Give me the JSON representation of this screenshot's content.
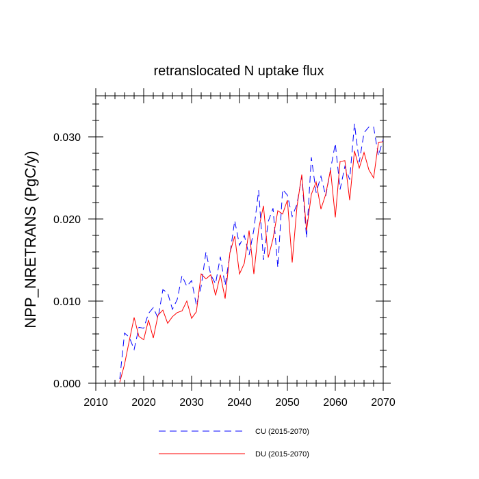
{
  "chart_data": {
    "type": "line",
    "title": "retranslocated N uptake flux",
    "xlabel": "",
    "ylabel": "NPP_NRETRANS  (PgC/y)",
    "xlim": [
      2010,
      2070
    ],
    "ylim": [
      0.0,
      0.035
    ],
    "xticks": [
      2010,
      2020,
      2030,
      2040,
      2050,
      2060,
      2070
    ],
    "xtick_labels": [
      "2010",
      "2020",
      "2030",
      "2040",
      "2050",
      "2060",
      "2070"
    ],
    "yticks": [
      0.0,
      0.01,
      0.02,
      0.03
    ],
    "ytick_labels": [
      "0.000",
      "0.010",
      "0.020",
      "0.030"
    ],
    "grid": false,
    "legend_position": "bottom",
    "x": [
      2015,
      2016,
      2017,
      2018,
      2019,
      2020,
      2021,
      2022,
      2023,
      2024,
      2025,
      2026,
      2027,
      2028,
      2029,
      2030,
      2031,
      2032,
      2033,
      2034,
      2035,
      2036,
      2037,
      2038,
      2039,
      2040,
      2041,
      2042,
      2043,
      2044,
      2045,
      2046,
      2047,
      2048,
      2049,
      2050,
      2051,
      2052,
      2053,
      2054,
      2055,
      2056,
      2057,
      2058,
      2059,
      2060,
      2061,
      2062,
      2063,
      2064,
      2065,
      2066,
      2067,
      2068,
      2069,
      2070
    ],
    "series": [
      {
        "name": "CU (2015-2070)",
        "color": "#0000ff",
        "dash": "dashed",
        "values": [
          0.0005,
          0.0061,
          0.0056,
          0.0041,
          0.0068,
          0.0067,
          0.0085,
          0.0092,
          0.0079,
          0.0114,
          0.011,
          0.009,
          0.0102,
          0.0131,
          0.0118,
          0.0125,
          0.0095,
          0.0118,
          0.016,
          0.0132,
          0.0121,
          0.0154,
          0.0119,
          0.0157,
          0.0198,
          0.0168,
          0.018,
          0.0156,
          0.0187,
          0.0235,
          0.015,
          0.0197,
          0.0213,
          0.0141,
          0.0236,
          0.0229,
          0.0203,
          0.0218,
          0.0252,
          0.0177,
          0.0275,
          0.0232,
          0.0252,
          0.0228,
          0.026,
          0.0292,
          0.0236,
          0.0264,
          0.0248,
          0.0316,
          0.0269,
          0.0305,
          0.0312,
          0.0312,
          0.0277,
          0.0297
        ]
      },
      {
        "name": "DU (2015-2070)",
        "color": "#ff0000",
        "dash": "solid",
        "values": [
          0.0001,
          0.0023,
          0.0052,
          0.008,
          0.0057,
          0.0053,
          0.0077,
          0.0055,
          0.0083,
          0.0089,
          0.0073,
          0.0081,
          0.0086,
          0.0088,
          0.01,
          0.0079,
          0.0087,
          0.0133,
          0.0127,
          0.0132,
          0.0107,
          0.0132,
          0.0103,
          0.0159,
          0.0179,
          0.0133,
          0.0146,
          0.0186,
          0.0133,
          0.0188,
          0.0216,
          0.0153,
          0.0176,
          0.021,
          0.0206,
          0.0223,
          0.0147,
          0.0215,
          0.0254,
          0.0186,
          0.023,
          0.0245,
          0.0212,
          0.023,
          0.026,
          0.0202,
          0.027,
          0.0271,
          0.0223,
          0.0283,
          0.0262,
          0.0281,
          0.026,
          0.025,
          0.0293,
          0.0294
        ]
      }
    ]
  }
}
